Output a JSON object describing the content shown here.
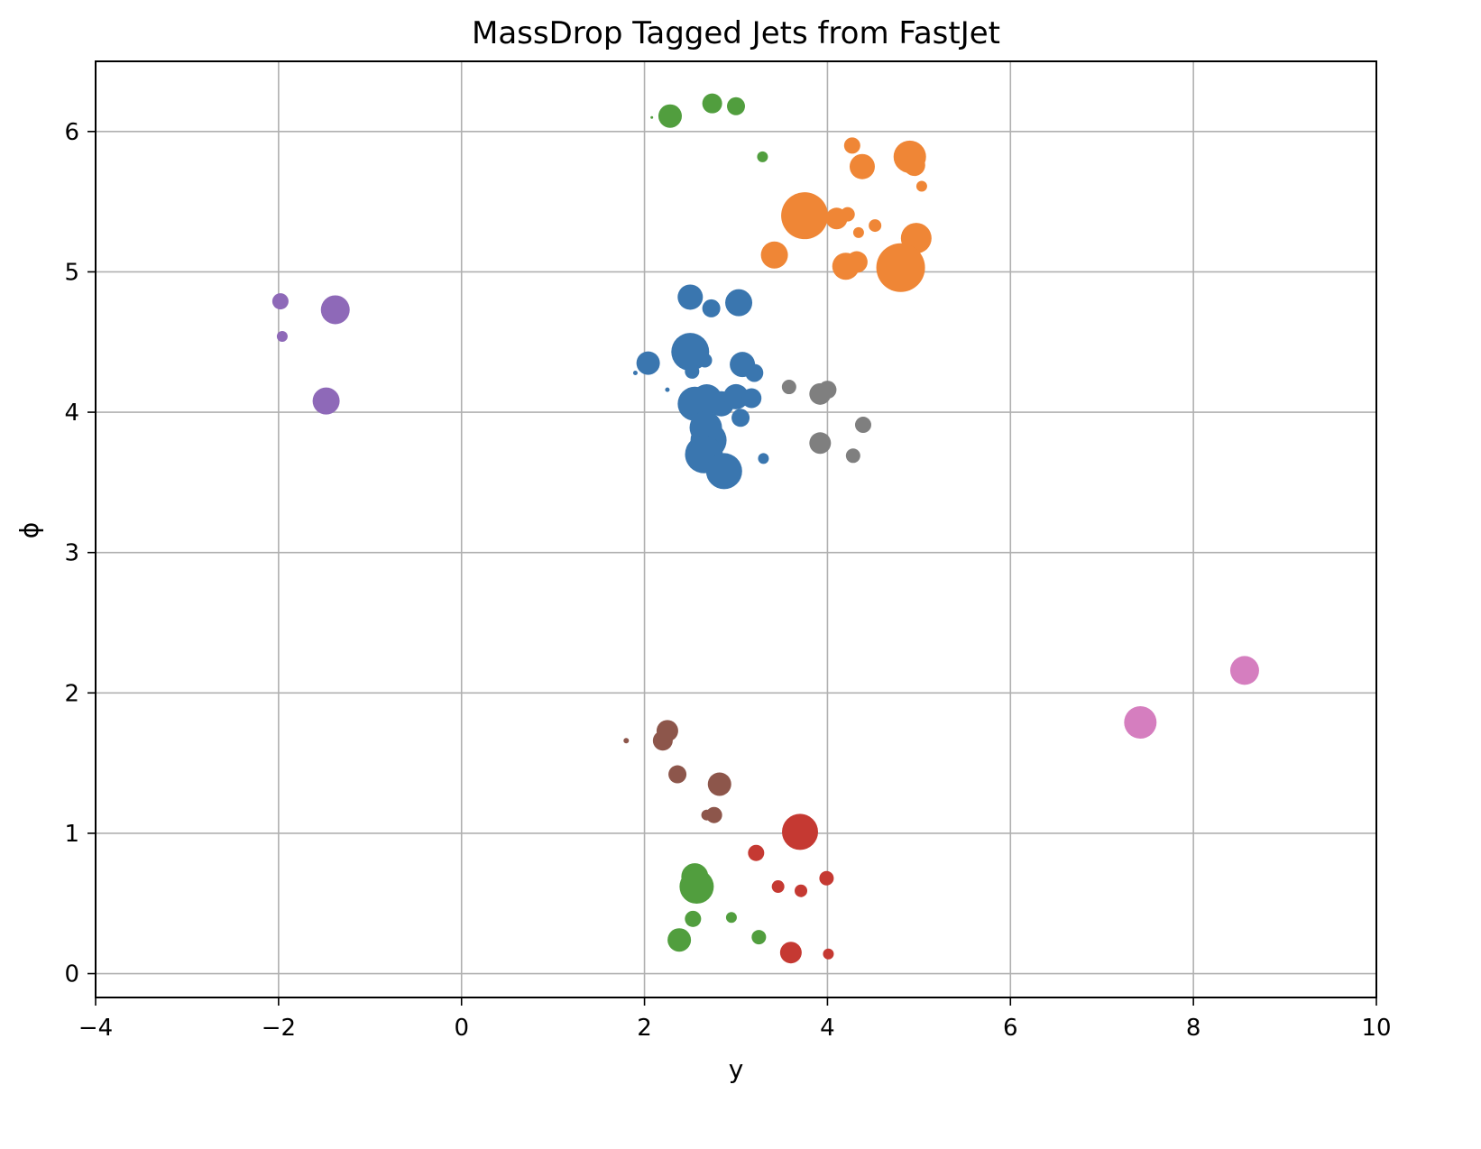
{
  "chart_data": {
    "type": "scatter",
    "title": "MassDrop Tagged Jets from FastJet",
    "xlabel": "y",
    "ylabel": "ϕ",
    "xlim": [
      -4,
      10
    ],
    "ylim": [
      -0.17,
      6.5
    ],
    "xticks": [
      -4,
      -2,
      0,
      2,
      4,
      6,
      8,
      10
    ],
    "yticks": [
      0,
      1,
      2,
      3,
      4,
      5,
      6
    ],
    "xtick_labels": [
      "−4",
      "−2",
      "0",
      "2",
      "4",
      "6",
      "8",
      "10"
    ],
    "ytick_labels": [
      "0",
      "1",
      "2",
      "3",
      "4",
      "5",
      "6"
    ],
    "grid": true,
    "marker_size_encoding": "area",
    "groups": [
      {
        "color": "#3a76af",
        "points": [
          {
            "x": 2.5,
            "y": 4.82,
            "s": 14
          },
          {
            "x": 2.73,
            "y": 4.74,
            "s": 10
          },
          {
            "x": 3.03,
            "y": 4.78,
            "s": 15
          },
          {
            "x": 2.04,
            "y": 4.35,
            "s": 13
          },
          {
            "x": 1.9,
            "y": 4.28,
            "s": 2.5
          },
          {
            "x": 2.5,
            "y": 4.43,
            "s": 21
          },
          {
            "x": 2.66,
            "y": 4.37,
            "s": 8
          },
          {
            "x": 2.52,
            "y": 4.29,
            "s": 8
          },
          {
            "x": 3.07,
            "y": 4.34,
            "s": 14
          },
          {
            "x": 3.2,
            "y": 4.28,
            "s": 10
          },
          {
            "x": 2.25,
            "y": 4.16,
            "s": 2.5
          },
          {
            "x": 2.55,
            "y": 4.06,
            "s": 19
          },
          {
            "x": 2.68,
            "y": 4.09,
            "s": 17
          },
          {
            "x": 2.84,
            "y": 4.06,
            "s": 14
          },
          {
            "x": 3.0,
            "y": 4.11,
            "s": 14
          },
          {
            "x": 3.17,
            "y": 4.1,
            "s": 11
          },
          {
            "x": 3.05,
            "y": 3.96,
            "s": 10
          },
          {
            "x": 2.67,
            "y": 3.89,
            "s": 18
          },
          {
            "x": 2.7,
            "y": 3.8,
            "s": 20
          },
          {
            "x": 2.65,
            "y": 3.7,
            "s": 21
          },
          {
            "x": 2.87,
            "y": 3.58,
            "s": 20
          },
          {
            "x": 3.3,
            "y": 3.67,
            "s": 6
          }
        ]
      },
      {
        "color": "#ef8636",
        "points": [
          {
            "x": 4.27,
            "y": 5.9,
            "s": 9
          },
          {
            "x": 4.38,
            "y": 5.75,
            "s": 14
          },
          {
            "x": 4.9,
            "y": 5.82,
            "s": 18
          },
          {
            "x": 4.95,
            "y": 5.76,
            "s": 12
          },
          {
            "x": 5.03,
            "y": 5.61,
            "s": 6
          },
          {
            "x": 3.75,
            "y": 5.4,
            "s": 26
          },
          {
            "x": 4.1,
            "y": 5.38,
            "s": 12
          },
          {
            "x": 4.22,
            "y": 5.41,
            "s": 8
          },
          {
            "x": 4.52,
            "y": 5.33,
            "s": 7
          },
          {
            "x": 4.34,
            "y": 5.28,
            "s": 6
          },
          {
            "x": 4.97,
            "y": 5.24,
            "s": 17
          },
          {
            "x": 3.42,
            "y": 5.12,
            "s": 15
          },
          {
            "x": 4.2,
            "y": 5.04,
            "s": 15
          },
          {
            "x": 4.32,
            "y": 5.07,
            "s": 12
          },
          {
            "x": 4.8,
            "y": 5.03,
            "s": 27
          }
        ]
      },
      {
        "color": "#7f7f7f",
        "points": [
          {
            "x": 3.58,
            "y": 4.18,
            "s": 8
          },
          {
            "x": 3.92,
            "y": 4.13,
            "s": 12
          },
          {
            "x": 4.0,
            "y": 4.16,
            "s": 10
          },
          {
            "x": 4.39,
            "y": 3.91,
            "s": 9
          },
          {
            "x": 3.92,
            "y": 3.78,
            "s": 12
          },
          {
            "x": 4.28,
            "y": 3.69,
            "s": 8
          }
        ]
      },
      {
        "color": "#519e3e",
        "points": [
          {
            "x": 2.08,
            "y": 6.1,
            "s": 1.5
          },
          {
            "x": 2.28,
            "y": 6.11,
            "s": 13
          },
          {
            "x": 2.74,
            "y": 6.2,
            "s": 11
          },
          {
            "x": 3.0,
            "y": 6.18,
            "s": 10
          },
          {
            "x": 3.29,
            "y": 5.82,
            "s": 6
          },
          {
            "x": 2.55,
            "y": 0.69,
            "s": 15
          },
          {
            "x": 2.57,
            "y": 0.62,
            "s": 19
          },
          {
            "x": 2.53,
            "y": 0.39,
            "s": 9
          },
          {
            "x": 2.95,
            "y": 0.4,
            "s": 6
          },
          {
            "x": 2.38,
            "y": 0.24,
            "s": 13
          },
          {
            "x": 3.25,
            "y": 0.26,
            "s": 8
          }
        ]
      },
      {
        "color": "#c53932",
        "points": [
          {
            "x": 3.7,
            "y": 1.01,
            "s": 20
          },
          {
            "x": 3.22,
            "y": 0.86,
            "s": 9
          },
          {
            "x": 3.99,
            "y": 0.68,
            "s": 8
          },
          {
            "x": 3.46,
            "y": 0.62,
            "s": 7
          },
          {
            "x": 3.71,
            "y": 0.59,
            "s": 7
          },
          {
            "x": 3.6,
            "y": 0.15,
            "s": 12
          },
          {
            "x": 4.01,
            "y": 0.14,
            "s": 6
          }
        ]
      },
      {
        "color": "#8d564b",
        "points": [
          {
            "x": 1.8,
            "y": 1.66,
            "s": 3
          },
          {
            "x": 2.2,
            "y": 1.66,
            "s": 11
          },
          {
            "x": 2.25,
            "y": 1.73,
            "s": 12
          },
          {
            "x": 2.36,
            "y": 1.42,
            "s": 10
          },
          {
            "x": 2.82,
            "y": 1.35,
            "s": 13
          },
          {
            "x": 2.68,
            "y": 1.13,
            "s": 6
          },
          {
            "x": 2.76,
            "y": 1.13,
            "s": 9
          }
        ]
      },
      {
        "color": "#8e69b8",
        "points": [
          {
            "x": -1.98,
            "y": 4.79,
            "s": 9
          },
          {
            "x": -1.38,
            "y": 4.73,
            "s": 16
          },
          {
            "x": -1.96,
            "y": 4.54,
            "s": 6
          },
          {
            "x": -1.48,
            "y": 4.08,
            "s": 15
          }
        ]
      },
      {
        "color": "#d57ebf",
        "points": [
          {
            "x": 8.56,
            "y": 2.16,
            "s": 16
          },
          {
            "x": 7.42,
            "y": 1.79,
            "s": 18
          }
        ]
      }
    ]
  }
}
